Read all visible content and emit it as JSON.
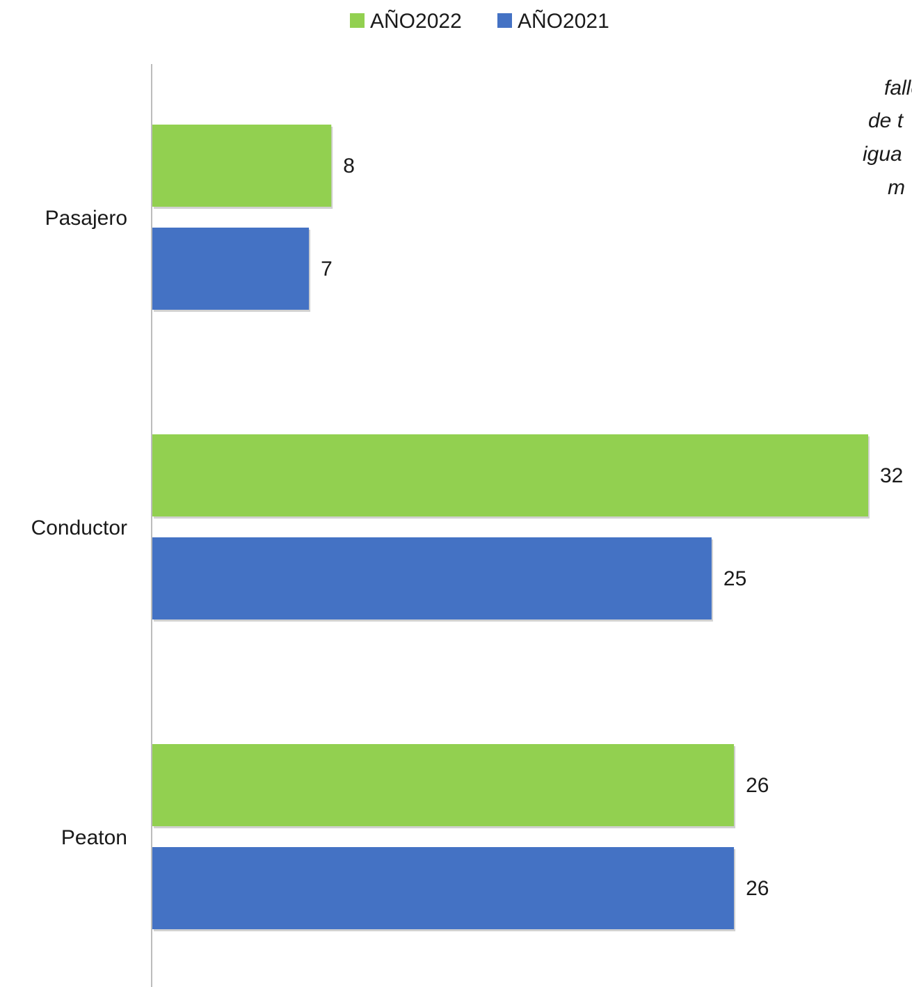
{
  "chart_data": {
    "type": "bar",
    "orientation": "horizontal",
    "categories": [
      "Pasajero",
      "Conductor",
      "Peaton"
    ],
    "series": [
      {
        "name": "AÑO2022",
        "color": "#92d050",
        "values": [
          8,
          32,
          26
        ]
      },
      {
        "name": "AÑO2021",
        "color": "#4472c4",
        "values": [
          7,
          25,
          26
        ]
      }
    ],
    "xlim": [
      0,
      32
    ],
    "grid": false,
    "legend": "top-center",
    "data_labels": true
  },
  "annotation": {
    "lines": [
      "falle",
      "de t",
      "igua",
      "m"
    ]
  }
}
